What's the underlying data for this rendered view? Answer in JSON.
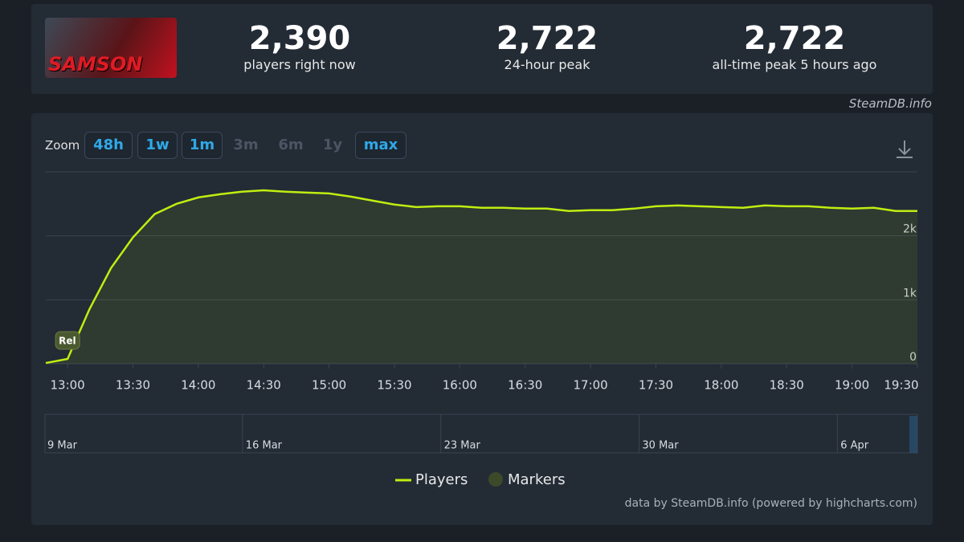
{
  "brand": "SteamDB.info",
  "game": {
    "logo": "SAMSON"
  },
  "stats": [
    {
      "value": "2,390",
      "label": "players right now"
    },
    {
      "value": "2,722",
      "label": "24-hour peak"
    },
    {
      "value": "2,722",
      "label": "all-time peak 5 hours ago"
    }
  ],
  "zoom": {
    "label": "Zoom",
    "buttons": [
      "48h",
      "1w",
      "1m",
      "3m",
      "6m",
      "1y",
      "max"
    ]
  },
  "credit": "data by SteamDB.info (powered by highcharts.com)",
  "chart_data": {
    "type": "line",
    "x": [
      "12:50",
      "13:00",
      "13:10",
      "13:20",
      "13:30",
      "13:40",
      "13:50",
      "14:00",
      "14:10",
      "14:20",
      "14:30",
      "14:40",
      "14:50",
      "15:00",
      "15:10",
      "15:20",
      "15:30",
      "15:40",
      "15:50",
      "16:00",
      "16:10",
      "16:20",
      "16:30",
      "16:40",
      "16:50",
      "17:00",
      "17:10",
      "17:20",
      "17:30",
      "17:40",
      "17:50",
      "18:00",
      "18:10",
      "18:20",
      "18:30",
      "18:40",
      "18:50",
      "19:00",
      "19:10",
      "19:20",
      "19:30"
    ],
    "series": [
      {
        "name": "Players",
        "color": "#beee11",
        "values": [
          12,
          75,
          850,
          1500,
          1975,
          2340,
          2500,
          2600,
          2650,
          2690,
          2712,
          2690,
          2675,
          2662,
          2612,
          2550,
          2488,
          2450,
          2462,
          2462,
          2438,
          2438,
          2425,
          2425,
          2388,
          2400,
          2400,
          2425,
          2462,
          2475,
          2462,
          2450,
          2438,
          2475,
          2462,
          2462,
          2438,
          2425,
          2438,
          2388,
          2388
        ]
      }
    ],
    "xlim": [
      "12:50",
      "19:30"
    ],
    "xticks": [
      "13:00",
      "13:30",
      "14:00",
      "14:30",
      "15:00",
      "15:30",
      "16:00",
      "16:30",
      "17:00",
      "17:30",
      "18:00",
      "18:30",
      "19:00",
      "19:30"
    ],
    "ylim": [
      0,
      3000
    ],
    "yticks": [
      0,
      {
        "value": 1000,
        "label": "1k"
      },
      {
        "value": 2000,
        "label": "2k"
      }
    ],
    "grid": true,
    "markers": [
      {
        "x": "13:00",
        "label": "Rel"
      }
    ],
    "marker_legend": "Markers",
    "navigator_labels": [
      "9 Mar",
      "16 Mar",
      "23 Mar",
      "30 Mar",
      "6 Apr"
    ]
  }
}
